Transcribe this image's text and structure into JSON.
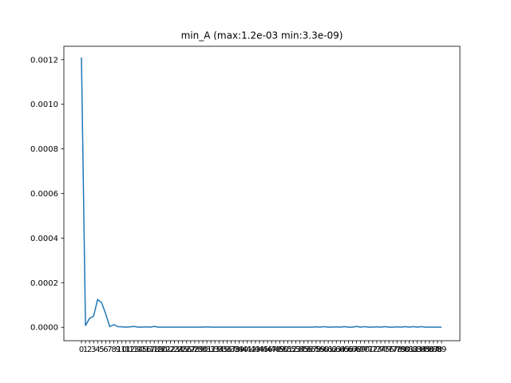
{
  "chart_data": {
    "type": "line",
    "title": "min_A (max:1.2e-03 min:3.3e-09)",
    "xlabel": "",
    "ylabel": "",
    "x_range": [
      0,
      89
    ],
    "ylim": [
      -6e-05,
      0.00126
    ],
    "y_ticks": [
      "0.0000",
      "0.0002",
      "0.0004",
      "0.0006",
      "0.0008",
      "0.0010",
      "0.0012"
    ],
    "x_tick_labels": [
      "0",
      "1",
      "2",
      "3",
      "4",
      "5",
      "6",
      "7",
      "8",
      "9",
      "10",
      "11",
      "12",
      "13",
      "14",
      "15",
      "16",
      "17",
      "18",
      "19",
      "20",
      "21",
      "22",
      "23",
      "24",
      "25",
      "26",
      "27",
      "28",
      "29",
      "30",
      "31",
      "32",
      "33",
      "34",
      "35",
      "36",
      "37",
      "38",
      "39",
      "40",
      "41",
      "42",
      "43",
      "44",
      "45",
      "46",
      "47",
      "48",
      "49",
      "50",
      "51",
      "52",
      "53",
      "54",
      "55",
      "56",
      "57",
      "58",
      "59",
      "60",
      "61",
      "62",
      "63",
      "64",
      "65",
      "66",
      "67",
      "68",
      "69",
      "70",
      "71",
      "72",
      "73",
      "74",
      "75",
      "76",
      "77",
      "78",
      "79",
      "80",
      "81",
      "82",
      "83",
      "84",
      "85",
      "86",
      "87",
      "88",
      "89"
    ],
    "grid": false,
    "legend": "none",
    "line_color": "#1f77b4",
    "series": [
      {
        "values": [
          0.00121,
          8e-06,
          4e-05,
          5e-05,
          0.000125,
          0.00011,
          6e-05,
          3e-06,
          1.2e-05,
          3e-06,
          2e-06,
          1e-06,
          2e-06,
          4e-06,
          1e-06,
          1e-06,
          2e-06,
          1e-06,
          4e-06,
          1e-06,
          1e-06,
          1e-06,
          1e-06,
          1e-06,
          1e-06,
          1e-06,
          1e-06,
          1e-06,
          1e-06,
          1e-06,
          1e-06,
          2e-06,
          1e-06,
          1e-06,
          1e-06,
          1e-06,
          1e-06,
          1e-06,
          1e-06,
          1e-06,
          1e-06,
          1e-06,
          1e-06,
          1e-06,
          1e-06,
          1e-06,
          1e-06,
          1e-06,
          1e-06,
          1e-06,
          1e-06,
          1e-06,
          1e-06,
          1e-06,
          1e-06,
          1e-06,
          1e-06,
          1e-06,
          2e-06,
          1e-06,
          3e-06,
          1e-06,
          1e-06,
          2e-06,
          1e-06,
          3e-06,
          1e-06,
          1e-06,
          4e-06,
          1e-06,
          3e-06,
          1e-06,
          1e-06,
          2e-06,
          1e-06,
          3e-06,
          1e-06,
          1e-06,
          2e-06,
          1e-06,
          3e-06,
          1e-06,
          3e-06,
          1e-06,
          3e-06,
          1e-06,
          1e-06,
          1e-06,
          1e-06,
          1e-06
        ]
      }
    ]
  }
}
